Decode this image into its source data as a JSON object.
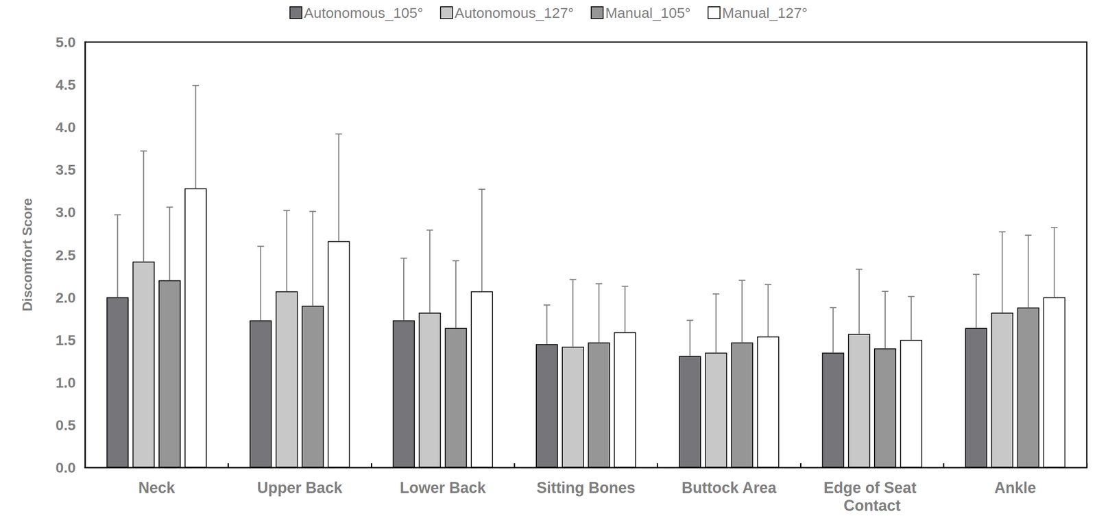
{
  "chart_data": {
    "type": "bar",
    "y_label": "Discomfort Score",
    "categories": [
      "Neck",
      "Upper Back",
      "Lower Back",
      "Sitting Bones",
      "Buttock Area",
      "Edge of Seat Contact",
      "Ankle"
    ],
    "series": [
      {
        "name": "Autonomous_105°",
        "color": "#76767a",
        "values": [
          2.0,
          1.73,
          1.73,
          1.45,
          1.31,
          1.35,
          1.64
        ],
        "errors": [
          0.97,
          0.87,
          0.73,
          0.46,
          0.42,
          0.53,
          0.63
        ]
      },
      {
        "name": "Autonomous_127°",
        "color": "#c8c8c8",
        "values": [
          2.42,
          2.07,
          1.82,
          1.42,
          1.35,
          1.57,
          1.82
        ],
        "errors": [
          1.3,
          0.95,
          0.97,
          0.79,
          0.69,
          0.76,
          0.95
        ]
      },
      {
        "name": "Manual_105°",
        "color": "#969696",
        "values": [
          2.2,
          1.9,
          1.64,
          1.47,
          1.47,
          1.4,
          1.88
        ],
        "errors": [
          0.86,
          1.11,
          0.79,
          0.69,
          0.73,
          0.67,
          0.85
        ]
      },
      {
        "name": "Manual_127°",
        "color": "#ffffff",
        "values": [
          3.28,
          2.66,
          2.07,
          1.59,
          1.54,
          1.5,
          2.0
        ],
        "errors": [
          1.21,
          1.26,
          1.2,
          0.54,
          0.61,
          0.51,
          0.82
        ]
      }
    ],
    "ylim": [
      0,
      5
    ],
    "yticks": [
      {
        "value": 0,
        "label": "0.0"
      },
      {
        "value": 0.5,
        "label": "0.5"
      },
      {
        "value": 1,
        "label": "1.0"
      },
      {
        "value": 1.5,
        "label": "1.5"
      },
      {
        "value": 2,
        "label": "2.0"
      },
      {
        "value": 2.5,
        "label": "2.5"
      },
      {
        "value": 3,
        "label": "3.0"
      },
      {
        "value": 3.5,
        "label": "3.5"
      },
      {
        "value": 4,
        "label": "4.0"
      },
      {
        "value": 4.5,
        "label": "4.5"
      },
      {
        "value": 5,
        "label": "5.0"
      }
    ],
    "grid": false,
    "legend": "top"
  }
}
